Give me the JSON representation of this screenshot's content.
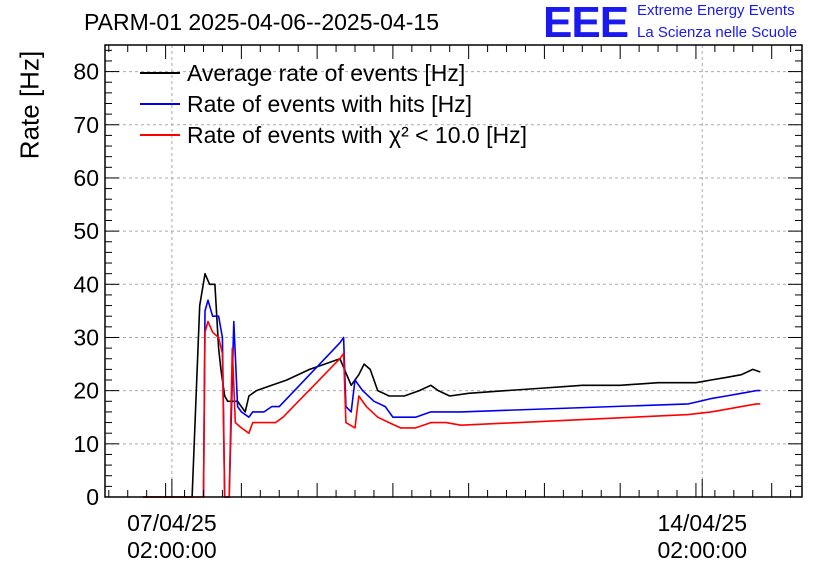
{
  "header": {
    "title": "PARM-01 2025-04-06--2025-04-15",
    "logo": "EEE",
    "org_line1": "Extreme Energy Events",
    "org_line2": "La Scienza nelle Scuole"
  },
  "colors": {
    "average": "#000000",
    "hits": "#0000ee",
    "chi2": "#ff0000",
    "grid": "#aaaaaa",
    "brand": "#1a1aee"
  },
  "chart_data": {
    "type": "line",
    "title": "PARM-01 2025-04-06--2025-04-15",
    "ylabel": "Rate [Hz]",
    "xlabel": "",
    "ylim": [
      0,
      85
    ],
    "yticks": [
      0,
      10,
      20,
      30,
      40,
      50,
      60,
      70,
      80
    ],
    "xlim_days": [
      6.2,
      15.4
    ],
    "xticks": [
      {
        "day": 7.083,
        "line1": "07/04/25",
        "line2": "02:00:00"
      },
      {
        "day": 14.083,
        "line1": "14/04/25",
        "line2": "02:00:00"
      }
    ],
    "grid": true,
    "legend_position": "top-left",
    "series": [
      {
        "name": "Average rate of events [Hz]",
        "color": "#000000",
        "points": [
          [
            6.7,
            0
          ],
          [
            6.9,
            0
          ],
          [
            7.0,
            0
          ],
          [
            7.35,
            0
          ],
          [
            7.45,
            36
          ],
          [
            7.52,
            42
          ],
          [
            7.58,
            40
          ],
          [
            7.65,
            40
          ],
          [
            7.7,
            28
          ],
          [
            7.73,
            24
          ],
          [
            7.78,
            19
          ],
          [
            7.82,
            18
          ],
          [
            7.95,
            18
          ],
          [
            8.05,
            16
          ],
          [
            8.1,
            19
          ],
          [
            8.2,
            20
          ],
          [
            8.4,
            21
          ],
          [
            8.6,
            22
          ],
          [
            8.9,
            24
          ],
          [
            9.1,
            25
          ],
          [
            9.3,
            26
          ],
          [
            9.45,
            21
          ],
          [
            9.55,
            23
          ],
          [
            9.62,
            25
          ],
          [
            9.7,
            24
          ],
          [
            9.8,
            20
          ],
          [
            9.95,
            19
          ],
          [
            10.15,
            19
          ],
          [
            10.35,
            20
          ],
          [
            10.5,
            21
          ],
          [
            10.6,
            20
          ],
          [
            10.75,
            19
          ],
          [
            11.0,
            19.5
          ],
          [
            11.5,
            20
          ],
          [
            12.0,
            20.5
          ],
          [
            12.5,
            21
          ],
          [
            13.0,
            21
          ],
          [
            13.5,
            21.5
          ],
          [
            14.0,
            21.5
          ],
          [
            14.2,
            22
          ],
          [
            14.4,
            22.5
          ],
          [
            14.6,
            23
          ],
          [
            14.75,
            24
          ],
          [
            14.85,
            23.5
          ]
        ]
      },
      {
        "name": "Rate of events with hits [Hz]",
        "color": "#0000ee",
        "points": [
          [
            7.5,
            0
          ],
          [
            7.52,
            35
          ],
          [
            7.56,
            37
          ],
          [
            7.62,
            34
          ],
          [
            7.7,
            34
          ],
          [
            7.75,
            30
          ],
          [
            7.78,
            0
          ],
          [
            7.84,
            0
          ],
          [
            7.9,
            33
          ],
          [
            7.95,
            17
          ],
          [
            8.0,
            16
          ],
          [
            8.1,
            15
          ],
          [
            8.15,
            16
          ],
          [
            8.3,
            16
          ],
          [
            8.4,
            17
          ],
          [
            8.5,
            17
          ],
          [
            9.3,
            29
          ],
          [
            9.35,
            30
          ],
          [
            9.38,
            17
          ],
          [
            9.45,
            16
          ],
          [
            9.5,
            22
          ],
          [
            9.6,
            20
          ],
          [
            9.75,
            18
          ],
          [
            9.9,
            17
          ],
          [
            10.0,
            15
          ],
          [
            10.3,
            15
          ],
          [
            10.5,
            16
          ],
          [
            10.7,
            16
          ],
          [
            10.9,
            16
          ],
          [
            13.9,
            17.5
          ],
          [
            14.2,
            18.5
          ],
          [
            14.4,
            19
          ],
          [
            14.6,
            19.5
          ],
          [
            14.8,
            20
          ],
          [
            14.85,
            20
          ]
        ]
      },
      {
        "name": "Rate of events with χ² < 10.0 [Hz]",
        "color": "#ff0000",
        "points": [
          [
            6.7,
            0
          ],
          [
            7.0,
            0
          ],
          [
            7.45,
            0
          ],
          [
            7.5,
            0
          ],
          [
            7.52,
            31
          ],
          [
            7.56,
            33
          ],
          [
            7.62,
            31
          ],
          [
            7.7,
            30
          ],
          [
            7.75,
            27
          ],
          [
            7.78,
            0
          ],
          [
            7.84,
            0
          ],
          [
            7.88,
            28
          ],
          [
            7.92,
            14
          ],
          [
            8.0,
            13
          ],
          [
            8.1,
            12
          ],
          [
            8.15,
            14
          ],
          [
            8.3,
            14
          ],
          [
            8.45,
            14
          ],
          [
            8.55,
            15
          ],
          [
            9.3,
            26
          ],
          [
            9.35,
            27
          ],
          [
            9.38,
            14
          ],
          [
            9.5,
            13
          ],
          [
            9.55,
            19
          ],
          [
            9.65,
            17
          ],
          [
            9.8,
            15
          ],
          [
            9.95,
            14
          ],
          [
            10.1,
            13
          ],
          [
            10.3,
            13
          ],
          [
            10.5,
            14
          ],
          [
            10.7,
            14
          ],
          [
            10.9,
            13.5
          ],
          [
            13.9,
            15.5
          ],
          [
            14.2,
            16
          ],
          [
            14.4,
            16.5
          ],
          [
            14.6,
            17
          ],
          [
            14.8,
            17.5
          ],
          [
            14.85,
            17.5
          ]
        ]
      }
    ]
  }
}
